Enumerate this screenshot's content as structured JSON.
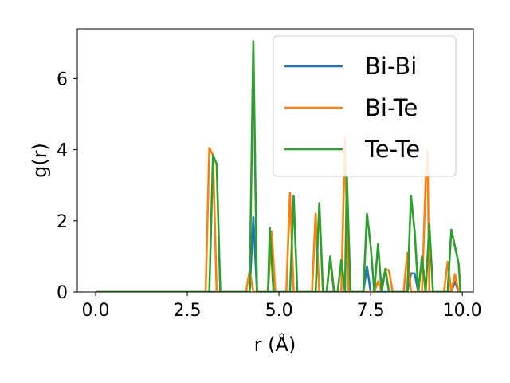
{
  "chart_data": {
    "type": "line",
    "xlabel": "r (Å)",
    "ylabel": "g(r)",
    "xlim": [
      -0.5,
      10.3
    ],
    "ylim": [
      0,
      7.4
    ],
    "xticks": [
      0.0,
      2.5,
      5.0,
      7.5,
      10.0
    ],
    "xtick_labels": [
      "0.0",
      "2.5",
      "5.0",
      "7.5",
      "10.0"
    ],
    "yticks": [
      0,
      2,
      4,
      6
    ],
    "ytick_labels": [
      "0",
      "2",
      "4",
      "6"
    ],
    "grid": false,
    "legend_position": "top-right",
    "series": [
      {
        "name": "Bi-Bi",
        "color": "#1f77b4",
        "points": [
          [
            0.0,
            0
          ],
          [
            4.2,
            0
          ],
          [
            4.3,
            2.1
          ],
          [
            4.4,
            0
          ],
          [
            7.3,
            0
          ],
          [
            7.4,
            0.72
          ],
          [
            7.5,
            0
          ],
          [
            8.5,
            0
          ],
          [
            8.6,
            0.52
          ],
          [
            8.7,
            0.52
          ],
          [
            8.8,
            0
          ],
          [
            9.7,
            0
          ],
          [
            9.8,
            0.3
          ],
          [
            9.9,
            0
          ]
        ]
      },
      {
        "name": "Bi-Te",
        "color": "#ff7f0e",
        "points": [
          [
            0.0,
            0
          ],
          [
            3.0,
            0
          ],
          [
            3.1,
            4.05
          ],
          [
            3.2,
            3.85
          ],
          [
            3.3,
            0
          ],
          [
            4.1,
            0
          ],
          [
            4.2,
            0.6
          ],
          [
            4.3,
            0
          ],
          [
            4.7,
            0
          ],
          [
            4.8,
            1.7
          ],
          [
            4.9,
            0
          ],
          [
            5.2,
            0
          ],
          [
            5.3,
            2.8
          ],
          [
            5.4,
            0
          ],
          [
            5.9,
            0
          ],
          [
            6.0,
            2.2
          ],
          [
            6.1,
            0
          ],
          [
            6.3,
            0
          ],
          [
            6.4,
            0.95
          ],
          [
            6.5,
            0
          ],
          [
            6.7,
            0
          ],
          [
            6.8,
            4.3
          ],
          [
            6.9,
            0
          ],
          [
            7.6,
            0
          ],
          [
            7.7,
            0.3
          ],
          [
            7.8,
            0
          ],
          [
            7.9,
            0.65
          ],
          [
            8.0,
            0.6
          ],
          [
            8.1,
            0
          ],
          [
            8.4,
            0
          ],
          [
            8.5,
            1.1
          ],
          [
            8.6,
            0
          ],
          [
            8.9,
            0
          ],
          [
            9.0,
            3.1
          ],
          [
            9.05,
            4.0
          ],
          [
            9.1,
            0
          ],
          [
            9.5,
            0
          ],
          [
            9.6,
            0.85
          ],
          [
            9.7,
            0
          ],
          [
            9.8,
            0.5
          ],
          [
            9.9,
            0
          ]
        ]
      },
      {
        "name": "Te-Te",
        "color": "#2ca02c",
        "points": [
          [
            0.0,
            0
          ],
          [
            3.1,
            0
          ],
          [
            3.2,
            3.85
          ],
          [
            3.3,
            3.6
          ],
          [
            3.4,
            0
          ],
          [
            4.2,
            0
          ],
          [
            4.3,
            7.05
          ],
          [
            4.4,
            0
          ],
          [
            4.7,
            0
          ],
          [
            4.75,
            1.8
          ],
          [
            4.85,
            0
          ],
          [
            5.3,
            0
          ],
          [
            5.4,
            2.7
          ],
          [
            5.5,
            0
          ],
          [
            6.0,
            0
          ],
          [
            6.1,
            2.5
          ],
          [
            6.2,
            0
          ],
          [
            6.3,
            0
          ],
          [
            6.4,
            1.0
          ],
          [
            6.5,
            0
          ],
          [
            6.6,
            0
          ],
          [
            6.7,
            0.9
          ],
          [
            6.8,
            0
          ],
          [
            6.85,
            3.3
          ],
          [
            6.95,
            0
          ],
          [
            7.3,
            0
          ],
          [
            7.4,
            2.2
          ],
          [
            7.5,
            1.3
          ],
          [
            7.6,
            0
          ],
          [
            7.7,
            1.35
          ],
          [
            7.8,
            0
          ],
          [
            7.9,
            0.65
          ],
          [
            8.0,
            0
          ],
          [
            8.5,
            0
          ],
          [
            8.6,
            2.7
          ],
          [
            8.7,
            1.7
          ],
          [
            8.8,
            0
          ],
          [
            8.9,
            1.0
          ],
          [
            9.0,
            0
          ],
          [
            9.1,
            1.9
          ],
          [
            9.2,
            0
          ],
          [
            9.6,
            0
          ],
          [
            9.7,
            1.75
          ],
          [
            9.9,
            0.8
          ],
          [
            9.95,
            0
          ]
        ]
      }
    ]
  }
}
